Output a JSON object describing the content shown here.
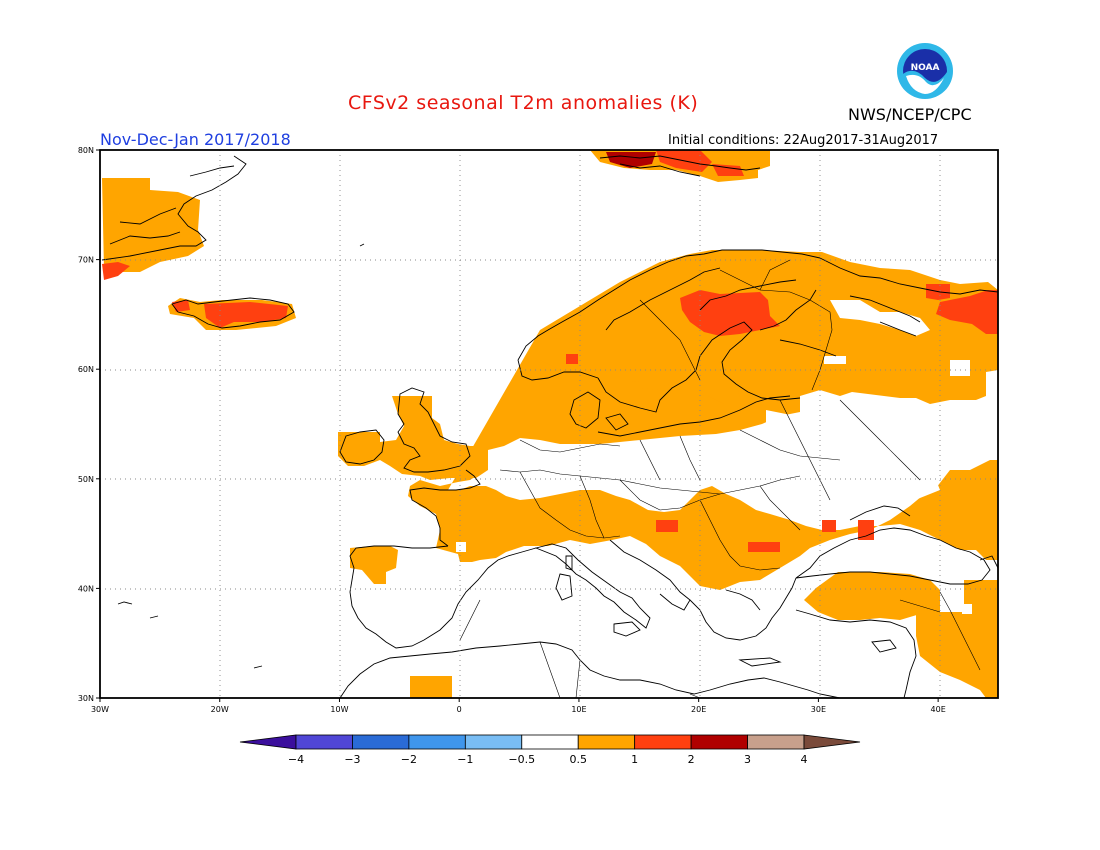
{
  "header": {
    "title": "CFSv2 seasonal T2m anomalies (K)",
    "agency": "NWS/NCEP/CPC",
    "period": "Nov-Dec-Jan 2017/2018",
    "initial_conditions": "Initial conditions: 22Aug2017-31Aug2017",
    "logo_text": "NOAA",
    "logo_icon": "noaa-logo-icon"
  },
  "map": {
    "region": "Europe",
    "lon_range": [
      -30,
      45
    ],
    "lat_range": [
      30,
      80
    ],
    "lat_ticks": [
      "30N",
      "40N",
      "50N",
      "60N",
      "70N",
      "80N"
    ],
    "lon_ticks": [
      "30W",
      "20W",
      "10W",
      "0",
      "10E",
      "20E",
      "30E",
      "40E"
    ],
    "grid": "dotted"
  },
  "colorbar": {
    "labels": [
      "-4",
      "-3",
      "-2",
      "-1",
      "-0.5",
      "0.5",
      "1",
      "2",
      "3",
      "4"
    ],
    "colors": [
      "#3b0f9d",
      "#5046d6",
      "#2a6bd6",
      "#3f96ec",
      "#79bdf4",
      "#ffffff",
      "#ffa500",
      "#ff4010",
      "#b00000",
      "#c8a08c",
      "#7a4a3a"
    ]
  }
}
